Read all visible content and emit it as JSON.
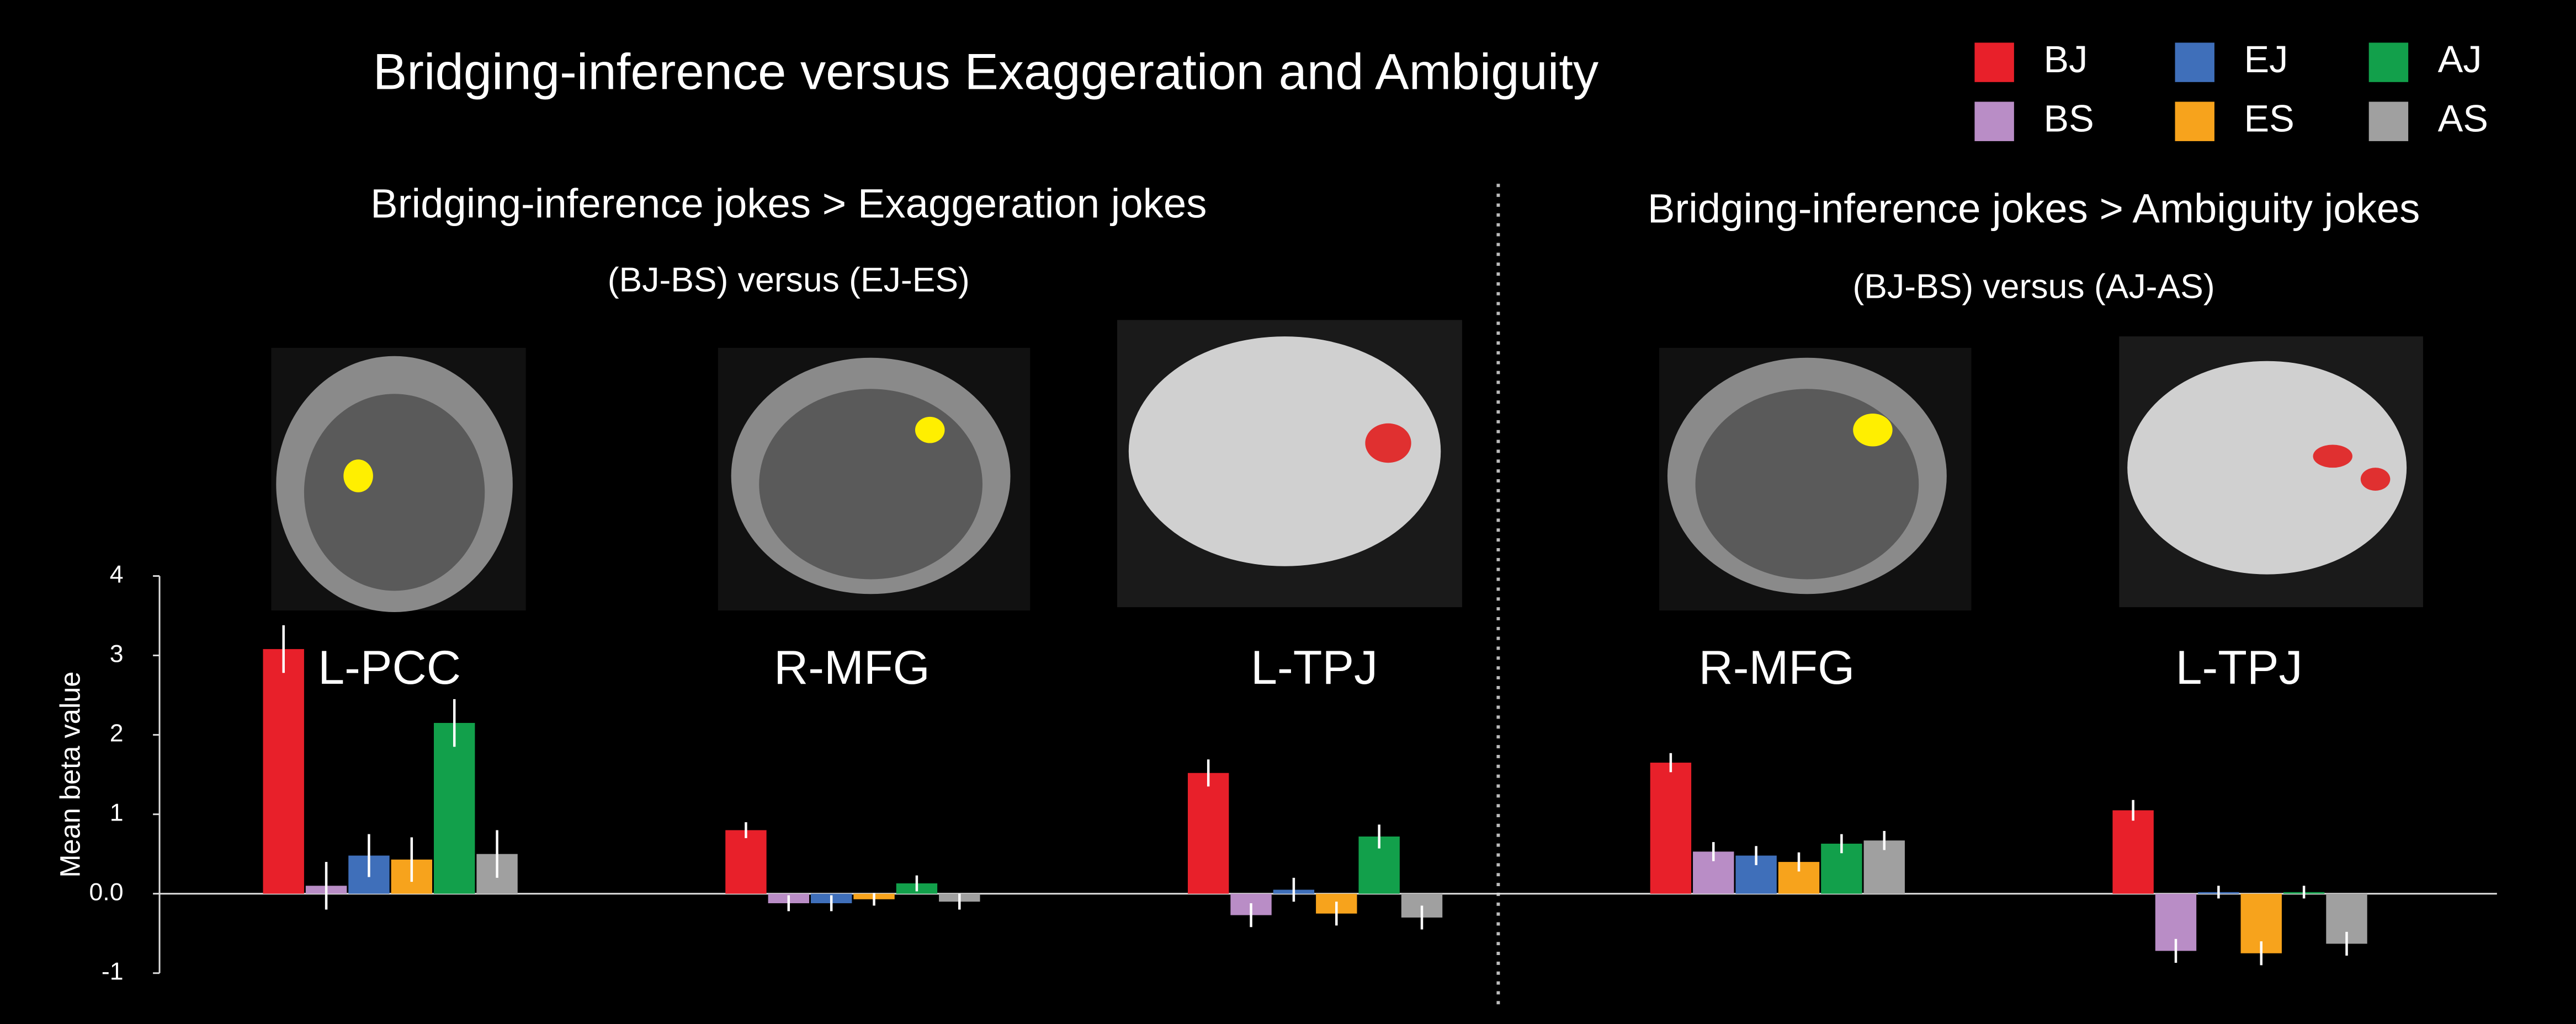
{
  "chart_data": {
    "type": "bar",
    "title": "Bridging-inference versus Exaggeration and Ambiguity",
    "panels": [
      {
        "title": "Bridging-inference jokes > Exaggeration jokes",
        "subtitle": "(BJ-BS) versus (EJ-ES)"
      },
      {
        "title": "Bridging-inference jokes > Ambiguity jokes",
        "subtitle": "(BJ-BS) versus (AJ-AS)"
      }
    ],
    "y_label": "Mean beta value",
    "categories": [
      "L-PCC",
      "R-MFG",
      "L-TPJ",
      "R-MFG",
      "L-TPJ"
    ],
    "series": [
      {
        "name": "BJ",
        "color": "#e8202a",
        "values": [
          3.08,
          0.8,
          1.52,
          1.65,
          1.05
        ],
        "errors": [
          0.3,
          0.1,
          0.17,
          0.12,
          0.13
        ]
      },
      {
        "name": "BS",
        "color": "#b98dc6",
        "values": [
          0.1,
          -0.12,
          -0.27,
          0.53,
          -0.72
        ],
        "errors": [
          0.3,
          0.1,
          0.15,
          0.12,
          0.15
        ]
      },
      {
        "name": "EJ",
        "color": "#3f6fba",
        "values": [
          0.48,
          -0.12,
          0.05,
          0.48,
          0.02
        ],
        "errors": [
          0.27,
          0.1,
          0.15,
          0.12,
          0.08
        ]
      },
      {
        "name": "ES",
        "color": "#f7a31c",
        "values": [
          0.43,
          -0.07,
          -0.25,
          0.4,
          -0.75
        ],
        "errors": [
          0.28,
          0.08,
          0.15,
          0.12,
          0.15
        ]
      },
      {
        "name": "AJ",
        "color": "#12a04b",
        "values": [
          2.15,
          0.13,
          0.72,
          0.63,
          0.02
        ],
        "errors": [
          0.3,
          0.1,
          0.15,
          0.12,
          0.08
        ]
      },
      {
        "name": "AS",
        "color": "#a0a0a0",
        "values": [
          0.5,
          -0.1,
          -0.3,
          0.67,
          -0.63
        ],
        "errors": [
          0.3,
          0.1,
          0.15,
          0.12,
          0.15
        ]
      }
    ],
    "ylim": [
      -1,
      4
    ],
    "yticks": [
      -1,
      {
        "value": 0,
        "label": "0.0"
      },
      1,
      2,
      3,
      4
    ]
  }
}
